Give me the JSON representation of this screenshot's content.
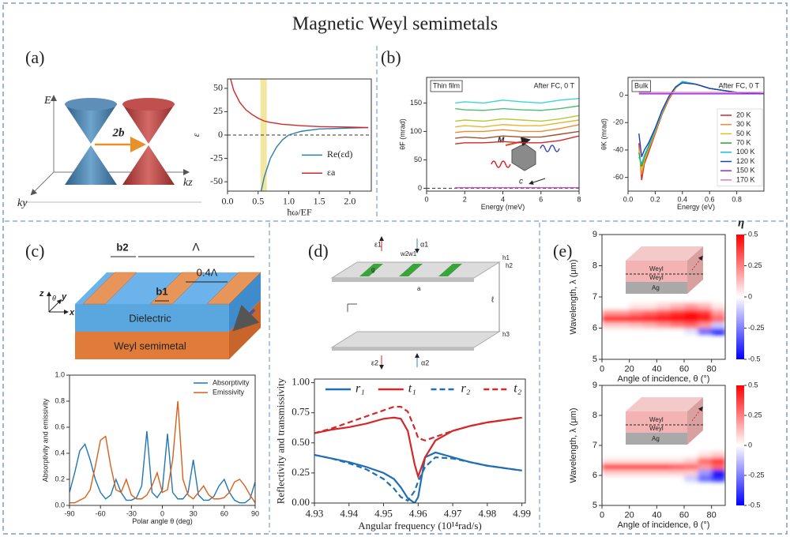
{
  "title": "Magnetic Weyl semimetals",
  "panel_labels": [
    "(a)",
    "(b)",
    "(c)",
    "(d)",
    "(e)"
  ],
  "diagram_labels": {
    "a": [
      "E",
      "ky",
      "kz",
      "2b"
    ],
    "b": [
      "M",
      "c"
    ],
    "c": [
      "b2",
      "Λ",
      "0.4Λ",
      "b1",
      "Dielectric",
      "Weyl semimetal",
      "z",
      "θ",
      "y",
      "x"
    ],
    "d": [
      "ε1",
      "α1",
      "w2",
      "w1",
      "h1",
      "h2",
      "g",
      "a",
      "ℓ",
      "h3",
      "ε2",
      "α2"
    ],
    "e": [
      "Weyl",
      "Weyl",
      "Ag",
      "Weyl",
      "Weyl",
      "Ag"
    ]
  },
  "chart_data": [
    {
      "type": "line",
      "xlabel": "ħω/EF",
      "ylabel": "ε",
      "x": [
        0.05,
        0.1,
        0.2,
        0.3,
        0.4,
        0.5,
        0.55,
        0.6,
        0.7,
        0.8,
        0.9,
        1.0,
        1.2,
        1.5,
        2.0,
        2.3
      ],
      "series": [
        {
          "name": "Re(εd)",
          "color": "#2e7bb6",
          "values": [
            null,
            null,
            null,
            null,
            null,
            null,
            -60,
            -45,
            -25,
            -13,
            -5,
            0,
            4,
            6.5,
            7.5,
            8
          ]
        },
        {
          "name": "εa",
          "color": "#d62728",
          "values": [
            60,
            48,
            35,
            27,
            22,
            18,
            16.5,
            15,
            13.5,
            12.5,
            11.5,
            11,
            10,
            9,
            8.5,
            8
          ]
        }
      ],
      "xlim": [
        0,
        2.35
      ],
      "ylim": [
        -60,
        60
      ],
      "xticks": [
        {
          "value": 0,
          "label": "0.0"
        },
        0.5,
        {
          "value": 1,
          "label": "1.0"
        },
        1.5,
        {
          "value": 2,
          "label": "2.0"
        }
      ],
      "yticks": [
        -50,
        -25,
        0,
        25,
        50
      ],
      "zero_line": true,
      "highlight_x": 0.59,
      "legend": "lower right"
    },
    {
      "type": "line",
      "xlabel": "Energy (meV)",
      "ylabel": "θF (mrad)",
      "annotations": [
        "Thin film",
        "After FC, 0 T"
      ],
      "x": [
        1.5,
        2,
        3,
        4,
        5,
        6,
        7,
        8
      ],
      "series": [
        {
          "color": "#3ad6d6",
          "values": [
            150,
            152,
            150,
            155,
            152,
            150,
            155,
            158
          ]
        },
        {
          "color": "#4bbf73",
          "values": [
            140,
            138,
            137,
            140,
            138,
            137,
            140,
            145
          ]
        },
        {
          "color": "#b5c934",
          "values": [
            118,
            120,
            118,
            122,
            120,
            118,
            122,
            128
          ]
        },
        {
          "color": "#e8b62a",
          "values": [
            108,
            110,
            108,
            112,
            110,
            110,
            115,
            120
          ]
        },
        {
          "color": "#f08a2a",
          "values": [
            98,
            100,
            100,
            103,
            100,
            100,
            105,
            112
          ]
        },
        {
          "color": "#a0522d",
          "values": [
            88,
            90,
            88,
            92,
            90,
            90,
            95,
            100
          ]
        },
        {
          "color": "#d62728",
          "values": [
            78,
            80,
            80,
            82,
            80,
            80,
            84,
            92
          ]
        },
        {
          "color": "#d050d0",
          "values": [
            1,
            1,
            1,
            1,
            1,
            1,
            1,
            1
          ]
        }
      ],
      "xlim": [
        0,
        8
      ],
      "ylim": [
        -5,
        195
      ],
      "xticks": [
        0,
        2,
        4,
        6,
        8
      ],
      "yticks": [
        0,
        50,
        100,
        150
      ],
      "zero_line": true
    },
    {
      "type": "line",
      "xlabel": "Energy (eV)",
      "ylabel": "θK (mrad)",
      "annotations": [
        "Bulk",
        "After FC, 0 T"
      ],
      "x": [
        0.08,
        0.1,
        0.12,
        0.15,
        0.2,
        0.25,
        0.3,
        0.35,
        0.4,
        0.5,
        0.6,
        0.8,
        1.0
      ],
      "series": [
        {
          "name": "20 K",
          "color": "#d62728",
          "values": [
            -35,
            -62,
            -50,
            -42,
            -28,
            -14,
            -3,
            5,
            10,
            8,
            5,
            2,
            1
          ]
        },
        {
          "name": "30 K",
          "color": "#f08a2a",
          "values": [
            -38,
            -58,
            -48,
            -40,
            -27,
            -13,
            -2,
            5,
            10,
            8,
            5,
            2,
            1
          ]
        },
        {
          "name": "50 K",
          "color": "#d9c31c",
          "values": [
            -40,
            -55,
            -47,
            -39,
            -26,
            -13,
            -2,
            5,
            10,
            8,
            5,
            2,
            1
          ]
        },
        {
          "name": "70 K",
          "color": "#2ca02c",
          "values": [
            -42,
            -52,
            -45,
            -38,
            -25,
            -12,
            -1,
            6,
            10,
            8,
            5,
            2,
            1
          ]
        },
        {
          "name": "100 K",
          "color": "#17becf",
          "values": [
            -45,
            -50,
            -44,
            -37,
            -25,
            -12,
            -1,
            6,
            10,
            8,
            5,
            2,
            1
          ]
        },
        {
          "name": "120 K",
          "color": "#1f3fbf",
          "values": [
            -28,
            -45,
            -40,
            -35,
            -24,
            -11,
            -1,
            6,
            9,
            8,
            5,
            2,
            1
          ]
        },
        {
          "name": "150 K",
          "color": "#8a2be2",
          "values": [
            1,
            1,
            1,
            1,
            1,
            1,
            1,
            1,
            1,
            1,
            1,
            1,
            1
          ]
        },
        {
          "name": "170 K",
          "color": "#e377c2",
          "values": [
            2,
            2,
            2,
            2,
            2,
            2,
            2,
            2,
            2,
            2,
            2,
            2,
            2
          ]
        }
      ],
      "xlim": [
        0,
        1
      ],
      "ylim": [
        -70,
        13
      ],
      "xticks": [
        {
          "value": 0,
          "label": "0.0"
        },
        0.2,
        0.4,
        0.6,
        0.8
      ],
      "yticks": [
        -60,
        -40,
        -20,
        0
      ],
      "legend": "right"
    },
    {
      "type": "line",
      "xlabel": "Polar angle θ (deg)",
      "ylabel": "Absorptivity and emissivity",
      "x": [
        -90,
        -85,
        -80,
        -75,
        -70,
        -65,
        -60,
        -55,
        -50,
        -45,
        -40,
        -35,
        -30,
        -25,
        -20,
        -15,
        -10,
        -5,
        0,
        5,
        10,
        15,
        20,
        25,
        30,
        35,
        40,
        45,
        50,
        55,
        60,
        65,
        70,
        75,
        80,
        85,
        90
      ],
      "series": [
        {
          "name": "Absorptivity",
          "color": "#1f77b4",
          "values": [
            0.1,
            0.25,
            0.42,
            0.47,
            0.35,
            0.2,
            0.1,
            0.05,
            0.08,
            0.2,
            0.1,
            0.04,
            0.04,
            0.06,
            0.15,
            0.57,
            0.1,
            0.06,
            0.12,
            0.55,
            0.1,
            0.05,
            0.05,
            0.1,
            0.35,
            0.08,
            0.04,
            0.04,
            0.07,
            0.15,
            0.2,
            0.1,
            0.04,
            0.02,
            0.02,
            0.05,
            0.18
          ]
        },
        {
          "name": "Emissivity",
          "color": "#d95f1a",
          "values": [
            0.02,
            0.02,
            0.04,
            0.06,
            0.12,
            0.3,
            0.5,
            0.53,
            0.3,
            0.12,
            0.1,
            0.2,
            0.08,
            0.05,
            0.05,
            0.08,
            0.15,
            0.25,
            0.1,
            0.12,
            0.35,
            0.8,
            0.2,
            0.08,
            0.05,
            0.1,
            0.15,
            0.08,
            0.05,
            0.05,
            0.06,
            0.1,
            0.18,
            0.2,
            0.15,
            0.08,
            0.02
          ]
        }
      ],
      "xlim": [
        -90,
        90
      ],
      "ylim": [
        0,
        1
      ],
      "xticks": [
        -90,
        -60,
        -30,
        0,
        30,
        60,
        90
      ],
      "yticks": [
        {
          "value": 0,
          "label": "0.0"
        },
        0.2,
        0.4,
        0.6,
        0.8,
        {
          "value": 1,
          "label": "1.0"
        }
      ],
      "legend": "upper right"
    },
    {
      "type": "line",
      "xlabel": "Angular frequency (10¹⁴rad/s)",
      "ylabel": "Reflectivity and transmissivity",
      "x": [
        4.93,
        4.935,
        4.94,
        4.945,
        4.95,
        4.953,
        4.955,
        4.957,
        4.959,
        4.96,
        4.962,
        4.965,
        4.97,
        4.975,
        4.98,
        4.985,
        4.99
      ],
      "series": [
        {
          "name": "r₁",
          "color": "#1f6fb4",
          "values": [
            0.4,
            0.37,
            0.34,
            0.3,
            0.25,
            0.2,
            0.13,
            0.04,
            0.0,
            0.05,
            0.38,
            0.42,
            0.38,
            0.34,
            0.31,
            0.29,
            0.27
          ]
        },
        {
          "name": "t₁",
          "color": "#d62728",
          "values": [
            0.58,
            0.61,
            0.63,
            0.66,
            0.7,
            0.71,
            0.7,
            0.6,
            0.32,
            0.22,
            0.38,
            0.52,
            0.6,
            0.64,
            0.67,
            0.69,
            0.71
          ]
        },
        {
          "name": "r₂",
          "color": "#1f6fb4",
          "style": "dashed",
          "values": [
            0.4,
            0.37,
            0.33,
            0.28,
            0.2,
            0.12,
            0.05,
            0.02,
            0.1,
            0.18,
            0.3,
            0.38,
            0.37,
            0.34,
            0.31,
            0.29,
            0.27
          ]
        },
        {
          "name": "t₂",
          "color": "#d62728",
          "style": "dashed",
          "values": [
            0.58,
            0.62,
            0.67,
            0.72,
            0.77,
            0.8,
            0.8,
            0.76,
            0.62,
            0.54,
            0.52,
            0.55,
            0.6,
            0.64,
            0.67,
            0.69,
            0.71
          ]
        }
      ],
      "xlim": [
        4.93,
        4.991
      ],
      "ylim": [
        0,
        1.03
      ],
      "xticks": [
        4.93,
        4.94,
        4.95,
        4.96,
        4.97,
        4.98,
        4.99
      ],
      "yticks": [
        {
          "value": 0,
          "label": "0.00"
        },
        0.25,
        {
          "value": 0.5,
          "label": "0.50"
        },
        0.75,
        {
          "value": 1,
          "label": "1.00"
        }
      ],
      "legend": "top"
    },
    {
      "type": "heatmap",
      "xlabel": "Angle of incidence, θ (°)",
      "ylabel": "Wavelength, λ (μm)",
      "x": [
        5,
        15,
        25,
        35,
        45,
        55,
        65,
        75,
        85
      ],
      "y": [
        5.9,
        6.1,
        6.3,
        6.5,
        6.7
      ],
      "z": [
        [
          0,
          0,
          0,
          0,
          0,
          0,
          -0.05,
          -0.3,
          -0.5
        ],
        [
          0.1,
          0.1,
          0.12,
          0.15,
          0.2,
          0.25,
          0.3,
          0.2,
          -0.1
        ],
        [
          0.45,
          0.45,
          0.45,
          0.45,
          0.5,
          0.5,
          0.5,
          0.45,
          0.3
        ],
        [
          0.2,
          0.2,
          0.25,
          0.3,
          0.35,
          0.4,
          0.45,
          0.4,
          0.2
        ],
        [
          0,
          0,
          0.05,
          0.05,
          0.1,
          0.15,
          0.2,
          0.15,
          0.05
        ]
      ],
      "xlim": [
        0,
        90
      ],
      "ylim": [
        5,
        9
      ],
      "xticks": [
        0,
        20,
        40,
        60,
        80
      ],
      "yticks": [
        5,
        6,
        7,
        8,
        9
      ],
      "colorbar": {
        "label": "η",
        "lim": [
          -0.5,
          0.5
        ],
        "ticks": [
          0.5,
          0.25,
          0,
          -0.25,
          -0.5
        ]
      }
    },
    {
      "type": "heatmap",
      "xlabel": "Angle of incidence, θ (°)",
      "ylabel": "Wavelength, λ (μm)",
      "x": [
        5,
        15,
        25,
        35,
        45,
        55,
        65,
        75,
        85
      ],
      "y": [
        5.9,
        6.1,
        6.3,
        6.5,
        6.7
      ],
      "z": [
        [
          0,
          0,
          0,
          0,
          0,
          0,
          -0.1,
          -0.3,
          -0.4
        ],
        [
          0.1,
          0.1,
          0.1,
          0.1,
          0.1,
          0.1,
          0.1,
          -0.2,
          -0.5
        ],
        [
          0.4,
          0.4,
          0.4,
          0.4,
          0.4,
          0.35,
          0.3,
          0.2,
          0.3
        ],
        [
          0.05,
          0.05,
          0.05,
          0.05,
          0.05,
          0.05,
          0.1,
          0.3,
          0.4
        ],
        [
          0,
          0,
          0,
          0,
          0,
          0,
          0,
          0.05,
          0.1
        ]
      ],
      "xlim": [
        0,
        90
      ],
      "ylim": [
        5,
        9
      ],
      "xticks": [
        0,
        20,
        40,
        60,
        80
      ],
      "yticks": [
        5,
        6,
        7,
        8,
        9
      ],
      "colorbar": {
        "lim": [
          -0.5,
          0.5
        ],
        "ticks": [
          0.5,
          0.25,
          0,
          -0.25,
          -0.5
        ]
      }
    }
  ]
}
